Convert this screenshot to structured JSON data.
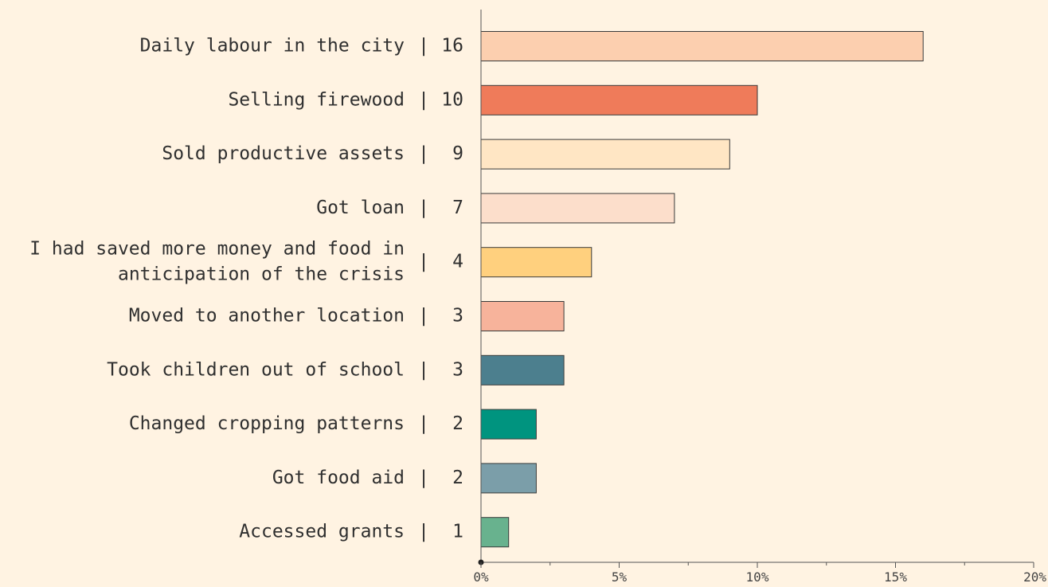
{
  "chart_data": {
    "type": "bar",
    "orientation": "horizontal",
    "categories": [
      "Daily labour in the city",
      "Selling firewood",
      "Sold productive assets",
      "Got loan",
      "I had saved more money and food in anticipation of the crisis",
      "Moved to another location",
      "Took children out of school",
      "Changed cropping patterns",
      "Got food aid",
      "Accessed grants"
    ],
    "category_lines": [
      [
        "Daily labour in the city"
      ],
      [
        "Selling firewood"
      ],
      [
        "Sold productive assets"
      ],
      [
        "Got loan"
      ],
      [
        "I had saved more money and food in",
        "anticipation of the crisis"
      ],
      [
        "Moved to another location"
      ],
      [
        "Took children out of school"
      ],
      [
        "Changed cropping patterns"
      ],
      [
        "Got food aid"
      ],
      [
        "Accessed grants"
      ]
    ],
    "values": [
      16,
      10,
      9,
      7,
      4,
      3,
      3,
      2,
      2,
      1
    ],
    "value_labels": [
      "16",
      "10",
      "9",
      "7",
      "4",
      "3",
      "3",
      "2",
      "2",
      "1"
    ],
    "separator": "|",
    "colors": [
      "#fccfaf",
      "#ef7b5a",
      "#ffe6c4",
      "#fcdecb",
      "#ffd07e",
      "#f7b39b",
      "#4c7f8e",
      "#00947f",
      "#7b9ea9",
      "#68b28e"
    ],
    "xlim": [
      0,
      20
    ],
    "xticks": [
      0,
      5,
      10,
      15,
      20
    ],
    "xtick_labels": [
      "0%",
      "5%",
      "10%",
      "15%",
      "20%"
    ],
    "title": "",
    "xlabel": "",
    "ylabel": "",
    "grid": false,
    "legend": "none"
  },
  "colors": {
    "background": "#fff3e2",
    "axis": "#555555",
    "bar_stroke": "#3a3a3a",
    "text": "#2f2f2f"
  }
}
